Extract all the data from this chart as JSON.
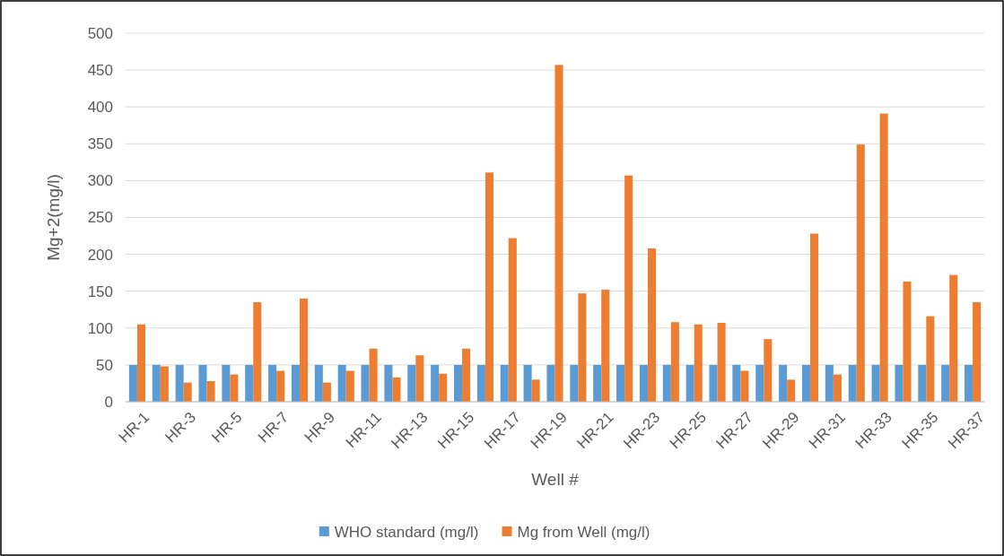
{
  "chart_data": {
    "type": "bar",
    "xlabel": "Well #",
    "ylabel": "Mg+2(mg/l)",
    "categories": [
      "HR-1",
      null,
      "HR-3",
      null,
      "HR-5",
      null,
      "HR-7",
      null,
      "HR-9",
      null,
      "HR-11",
      null,
      "HR-13",
      null,
      "HR-15",
      null,
      "HR-17",
      null,
      "HR-19",
      null,
      "HR-21",
      null,
      "HR-23",
      null,
      "HR-25",
      null,
      "HR-27",
      null,
      "HR-29",
      null,
      "HR-31",
      null,
      "HR-33",
      null,
      "HR-35",
      null,
      "HR-37"
    ],
    "series": [
      {
        "name": "WHO standard (mg/l)",
        "color": "#5b9bd5",
        "values": [
          50,
          50,
          50,
          50,
          50,
          50,
          50,
          50,
          50,
          50,
          50,
          50,
          50,
          50,
          50,
          50,
          50,
          50,
          50,
          50,
          50,
          50,
          50,
          50,
          50,
          50,
          50,
          50,
          50,
          50,
          50,
          50,
          50,
          50,
          50,
          50,
          50
        ]
      },
      {
        "name": "Mg from Well (mg/l)",
        "color": "#ed7d31",
        "values": [
          105,
          48,
          26,
          28,
          37,
          135,
          42,
          140,
          26,
          42,
          72,
          33,
          63,
          38,
          72,
          311,
          222,
          30,
          457,
          147,
          152,
          307,
          208,
          108,
          105,
          107,
          42,
          85,
          30,
          228,
          37,
          349,
          391,
          163,
          116,
          172,
          135
        ]
      }
    ],
    "ylim": [
      0,
      500
    ],
    "yticks": [
      0,
      50,
      100,
      150,
      200,
      250,
      300,
      350,
      400,
      450,
      500
    ],
    "grid": "y",
    "legend": "bottom"
  }
}
